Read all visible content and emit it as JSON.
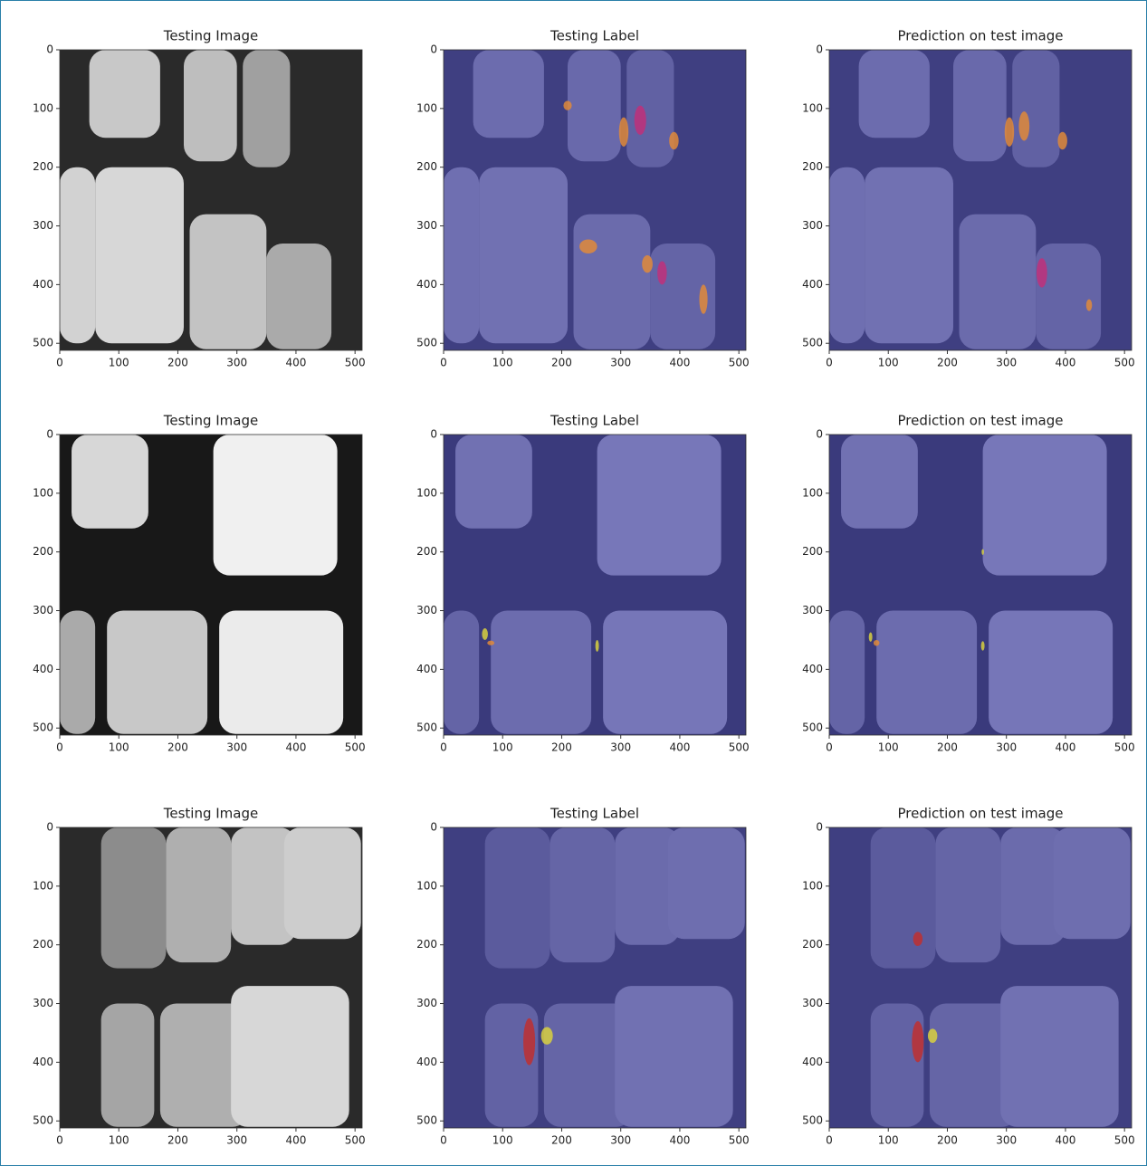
{
  "chart_data": [
    {
      "type": "image",
      "title": "Testing Image",
      "xlim": [
        0,
        512
      ],
      "ylim": [
        512,
        0
      ],
      "xticks": [
        0,
        100,
        200,
        300,
        400,
        500
      ],
      "yticks": [
        0,
        100,
        200,
        300,
        400,
        500
      ]
    },
    {
      "type": "image",
      "title": "Testing Label",
      "xlim": [
        0,
        512
      ],
      "ylim": [
        512,
        0
      ],
      "xticks": [
        0,
        100,
        200,
        300,
        400,
        500
      ],
      "yticks": [
        0,
        100,
        200,
        300,
        400,
        500
      ]
    },
    {
      "type": "image",
      "title": "Prediction on test image",
      "xlim": [
        0,
        512
      ],
      "ylim": [
        512,
        0
      ],
      "xticks": [
        0,
        100,
        200,
        300,
        400,
        500
      ],
      "yticks": [
        0,
        100,
        200,
        300,
        400,
        500
      ]
    },
    {
      "type": "image",
      "title": "Testing Image",
      "xlim": [
        0,
        512
      ],
      "ylim": [
        512,
        0
      ],
      "xticks": [
        0,
        100,
        200,
        300,
        400,
        500
      ],
      "yticks": [
        0,
        100,
        200,
        300,
        400,
        500
      ]
    },
    {
      "type": "image",
      "title": "Testing Label",
      "xlim": [
        0,
        512
      ],
      "ylim": [
        512,
        0
      ],
      "xticks": [
        0,
        100,
        200,
        300,
        400,
        500
      ],
      "yticks": [
        0,
        100,
        200,
        300,
        400,
        500
      ]
    },
    {
      "type": "image",
      "title": "Prediction on test image",
      "xlim": [
        0,
        512
      ],
      "ylim": [
        512,
        0
      ],
      "xticks": [
        0,
        100,
        200,
        300,
        400,
        500
      ],
      "yticks": [
        0,
        100,
        200,
        300,
        400,
        500
      ]
    },
    {
      "type": "image",
      "title": "Testing Image",
      "xlim": [
        0,
        512
      ],
      "ylim": [
        512,
        0
      ],
      "xticks": [
        0,
        100,
        200,
        300,
        400,
        500
      ],
      "yticks": [
        0,
        100,
        200,
        300,
        400,
        500
      ]
    },
    {
      "type": "image",
      "title": "Testing Label",
      "xlim": [
        0,
        512
      ],
      "ylim": [
        512,
        0
      ],
      "xticks": [
        0,
        100,
        200,
        300,
        400,
        500
      ],
      "yticks": [
        0,
        100,
        200,
        300,
        400,
        500
      ]
    },
    {
      "type": "image",
      "title": "Prediction on test image",
      "xlim": [
        0,
        512
      ],
      "ylim": [
        512,
        0
      ],
      "xticks": [
        0,
        100,
        200,
        300,
        400,
        500
      ],
      "yticks": [
        0,
        100,
        200,
        300,
        400,
        500
      ]
    }
  ]
}
